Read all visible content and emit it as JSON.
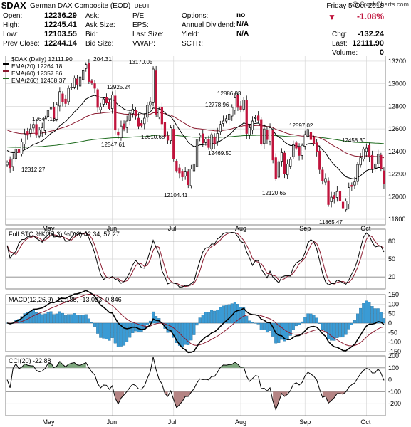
{
  "header": {
    "symbol": "$DAX",
    "name": "German DAX Composite (EOD)",
    "exchange": "DEUT",
    "watermark": "@ StockCharts.com",
    "date": "Friday  5-Oct-2018",
    "quotes": [
      {
        "label": "Open:",
        "value": "12236.29"
      },
      {
        "label": "High:",
        "value": "12245.41"
      },
      {
        "label": "Low:",
        "value": "12103.55"
      },
      {
        "label": "Prev Close:",
        "value": "12244.14"
      }
    ],
    "middle": [
      {
        "label": "Ask:",
        "value": ""
      },
      {
        "label": "Ask Size:",
        "value": ""
      },
      {
        "label": "Bid:",
        "value": ""
      },
      {
        "label": "Bid Size:",
        "value": ""
      }
    ],
    "middle2": [
      {
        "label": "P/E:",
        "value": "no"
      },
      {
        "label": "EPS:",
        "value": "N/A"
      },
      {
        "label": "Last Size:",
        "value": "N/A"
      },
      {
        "label": "VWAP:",
        "value": ""
      }
    ],
    "middle3": [
      {
        "label": "Options:",
        "value": ""
      },
      {
        "label": "Annual Dividend:",
        "value": ""
      },
      {
        "label": "Yield:",
        "value": ""
      },
      {
        "label": "SCTR:",
        "value": ""
      }
    ],
    "change_pct": "-1.08%",
    "chg_label": "Chg:",
    "chg": "-132.24",
    "last_label": "Last:",
    "last": "12111.90",
    "vol_label": "Volume:",
    "vol": "0"
  },
  "chart_data": [
    {
      "type": "candlestick",
      "legend": [
        "$DAX (Daily) 12111.90",
        "EMA(20) 12264.18",
        "EMA(60) 12357.86",
        "EMA(260) 12468.37"
      ],
      "last_bar_label": "204.31",
      "ylim": [
        11750,
        13250
      ],
      "y_ticks": [
        11800,
        12000,
        12200,
        12400,
        12600,
        12800,
        13000,
        13200
      ],
      "y_tick_labels": [
        "11800",
        "12000",
        "12200",
        "12400",
        "12600",
        "12800",
        "13000",
        "13200"
      ],
      "x_ticks": [
        "May",
        "Jun",
        "Jul",
        "Aug",
        "Sep",
        "Oct"
      ],
      "annotations": [
        {
          "text": "13170.05",
          "value": 13170.05
        },
        {
          "text": "12925.24",
          "value": 12925.24
        },
        {
          "text": "12886.83",
          "value": 12886.83
        },
        {
          "text": "12778.96",
          "value": 12778.96
        },
        {
          "text": "12647.16",
          "value": 12647.16
        },
        {
          "text": "12610.68",
          "value": 12610.68
        },
        {
          "text": "12597.02",
          "value": 12597.02
        },
        {
          "text": "12547.61",
          "value": 12547.61
        },
        {
          "text": "12469.50",
          "value": 12469.5
        },
        {
          "text": "12458.30",
          "value": 12458.3
        },
        {
          "text": "12312.27",
          "value": 12312.27
        },
        {
          "text": "12120.65",
          "value": 12120.65
        },
        {
          "text": "12104.41",
          "value": 12104.41
        },
        {
          "text": "11865.47",
          "value": 11865.47
        }
      ],
      "close": [
        12305,
        12255,
        12335,
        12420,
        12390,
        12485,
        12555,
        12545,
        12600,
        12640,
        12545,
        12590,
        12610,
        12690,
        12765,
        12790,
        12690,
        12815,
        12930,
        12840,
        12825,
        12960,
        12970,
        13050,
        12995,
        13060,
        13115,
        13170,
        13020,
        13005,
        12960,
        12790,
        12795,
        12865,
        12830,
        12780,
        12900,
        12590,
        12545,
        12625,
        12600,
        12670,
        12740,
        12775,
        12715,
        12625,
        12630,
        12695,
        12810,
        12840,
        13130,
        12730,
        12770,
        12645,
        12535,
        12500,
        12610,
        12335,
        12230,
        12210,
        12175,
        12225,
        12105,
        12245,
        12290,
        12510,
        12545,
        12475,
        12510,
        12435,
        12550,
        12465,
        12560,
        12640,
        12670,
        12690,
        12730,
        12790,
        12875,
        12790,
        12770,
        12855,
        12560,
        12610,
        12670,
        12700,
        12675,
        12470,
        12600,
        12505,
        12610,
        12325,
        12160,
        12310,
        12390,
        12205,
        12290,
        12330,
        12460,
        12430,
        12365,
        12455,
        12550,
        12595,
        12505,
        12465,
        12400,
        12240,
        12140,
        12160,
        11930,
        11995,
        11985,
        12045,
        11960,
        11900,
        11960,
        12080,
        12090,
        12130,
        12285,
        12345,
        12420,
        12430,
        12350,
        12245,
        12290,
        12375,
        12245,
        12112
      ],
      "ema20_label": "EMA(20)",
      "ema60_label": "EMA(60)",
      "ema260_label": "EMA(260)"
    },
    {
      "type": "line",
      "title": "Full STO %K(14,3) %D(3) 42.34, 57.27",
      "ylim": [
        0,
        100
      ],
      "y_ticks": [
        20,
        50,
        80
      ],
      "y_tick_labels": [
        "20",
        "50",
        "80"
      ],
      "levels": [
        20,
        80
      ]
    },
    {
      "type": "line+bar",
      "title": "MACD(12,26,9) -12.188, -13.033, 0.846",
      "ylim": [
        -150,
        150
      ],
      "y_ticks": [
        -150,
        -100,
        -50,
        0,
        50,
        100,
        150
      ],
      "y_tick_labels": [
        "-150",
        "-100",
        "-50",
        "0",
        "50",
        "100",
        "150"
      ]
    },
    {
      "type": "area",
      "title": "CCI(20) -22.88",
      "ylim": [
        -300,
        200
      ],
      "y_ticks": [
        -200,
        -100,
        0,
        100,
        200
      ],
      "y_tick_labels": [
        "-200",
        "-100",
        "0",
        "100",
        "200"
      ],
      "levels": [
        -100,
        100
      ]
    }
  ],
  "colors": {
    "up": "#ffffff",
    "down": "#c0143c",
    "ema20": "#000000",
    "ema60": "#8b1a2f",
    "ema260": "#1e6b1e",
    "sto_k": "#000000",
    "sto_d": "#8b1a2f",
    "hist": "#3a9bd5",
    "cci_pos": "#7ea77e",
    "cci_neg": "#b58484"
  }
}
